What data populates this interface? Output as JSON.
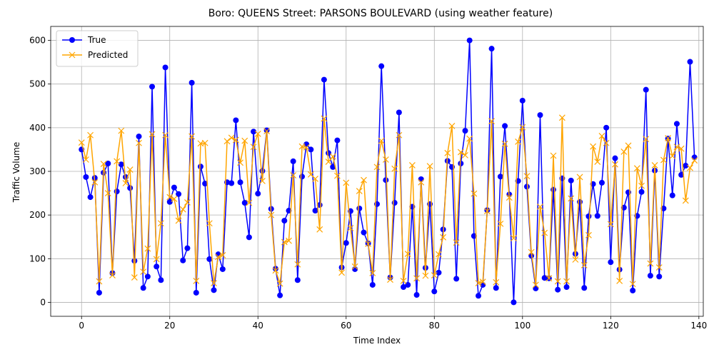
{
  "chart_data": {
    "type": "line",
    "title": "Boro: QUEENS Street: PARSONS BOULEVARD (using weather feature)",
    "xlabel": "Time Index",
    "ylabel": "Traffic Volume",
    "xlim": [
      -7,
      141
    ],
    "ylim": [
      -32,
      632
    ],
    "xticks": [
      0,
      20,
      40,
      60,
      80,
      100,
      120,
      140
    ],
    "yticks": [
      0,
      100,
      200,
      300,
      400,
      500,
      600
    ],
    "grid": true,
    "legend_position": "top-left",
    "series": [
      {
        "name": "True",
        "color": "#0000ff",
        "marker": "circle",
        "values": [
          350,
          287,
          241,
          285,
          22,
          297,
          318,
          67,
          254,
          316,
          287,
          262,
          95,
          380,
          33,
          59,
          494,
          82,
          51,
          538,
          230,
          263,
          248,
          96,
          124,
          503,
          22,
          311,
          272,
          99,
          28,
          110,
          76,
          275,
          273,
          417,
          275,
          228,
          149,
          391,
          249,
          301,
          394,
          214,
          77,
          16,
          187,
          210,
          323,
          51,
          288,
          362,
          350,
          210,
          223,
          510,
          342,
          310,
          371,
          80,
          136,
          209,
          76,
          215,
          160,
          135,
          40,
          225,
          541,
          280,
          57,
          228,
          435,
          35,
          40,
          219,
          17,
          282,
          79,
          225,
          25,
          68,
          167,
          324,
          310,
          54,
          318,
          393,
          600,
          152,
          15,
          40,
          211,
          581,
          33,
          288,
          404,
          247,
          0,
          278,
          462,
          265,
          107,
          32,
          429,
          56,
          55,
          258,
          29,
          284,
          35,
          279,
          111,
          230,
          33,
          197,
          271,
          198,
          274,
          400,
          92,
          330,
          75,
          217,
          252,
          27,
          198,
          253,
          487,
          61,
          302,
          59,
          215,
          375,
          245,
          409,
          292,
          313,
          551,
          332
        ]
      },
      {
        "name": "Predicted",
        "color": "#ffa500",
        "marker": "x",
        "values": [
          366,
          327,
          383,
          275,
          48,
          317,
          250,
          62,
          323,
          393,
          273,
          304,
          57,
          365,
          70,
          123,
          385,
          99,
          181,
          383,
          241,
          237,
          187,
          213,
          229,
          380,
          49,
          364,
          365,
          181,
          44,
          104,
          108,
          369,
          377,
          372,
          320,
          370,
          228,
          356,
          386,
          278,
          392,
          200,
          73,
          43,
          138,
          141,
          291,
          87,
          357,
          355,
          293,
          283,
          167,
          421,
          322,
          334,
          290,
          68,
          274,
          170,
          82,
          255,
          280,
          134,
          67,
          310,
          370,
          327,
          52,
          306,
          383,
          49,
          111,
          314,
          55,
          275,
          61,
          312,
          62,
          110,
          149,
          342,
          404,
          137,
          344,
          337,
          375,
          249,
          44,
          47,
          209,
          415,
          46,
          180,
          363,
          240,
          147,
          368,
          401,
          289,
          115,
          40,
          219,
          159,
          55,
          336,
          48,
          423,
          48,
          238,
          98,
          287,
          85,
          154,
          357,
          322,
          381,
          365,
          179,
          316,
          49,
          345,
          359,
          42,
          307,
          267,
          374,
          89,
          314,
          80,
          326,
          376,
          335,
          356,
          352,
          233,
          308,
          325
        ]
      }
    ]
  }
}
